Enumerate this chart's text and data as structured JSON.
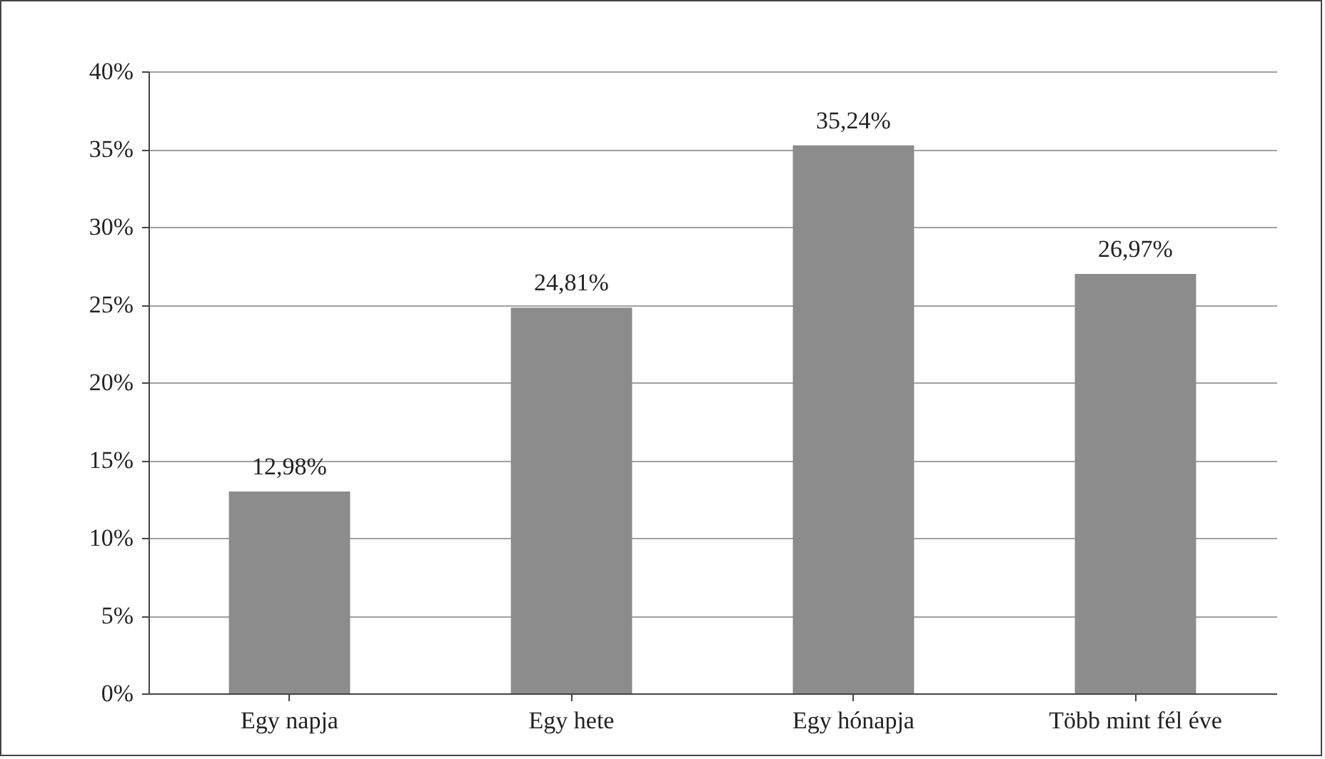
{
  "chart_data": {
    "type": "bar",
    "categories": [
      "Egy napja",
      "Egy hete",
      "Egy hónapja",
      "Több mint fél éve"
    ],
    "values": [
      12.98,
      24.81,
      35.24,
      26.97
    ],
    "value_labels": [
      "12,98%",
      "24,81%",
      "35,24%",
      "26,97%"
    ],
    "color": "#8c8c8c",
    "ylim": [
      0,
      40
    ],
    "yticks": [
      {
        "value": 0,
        "label": "0%"
      },
      {
        "value": 5,
        "label": "5%"
      },
      {
        "value": 10,
        "label": "10%"
      },
      {
        "value": 15,
        "label": "15%"
      },
      {
        "value": 20,
        "label": "20%"
      },
      {
        "value": 25,
        "label": "25%"
      },
      {
        "value": 30,
        "label": "30%"
      },
      {
        "value": 35,
        "label": "35%"
      },
      {
        "value": 40,
        "label": "40%"
      }
    ],
    "grid": "y"
  }
}
